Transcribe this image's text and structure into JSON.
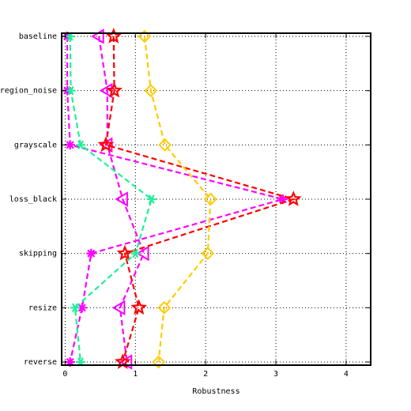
{
  "chart_data": {
    "type": "line",
    "xlabel": "Robustness",
    "ylabel": "",
    "xlim": [
      -0.05,
      4.35
    ],
    "xticks": [
      "0",
      "1",
      "2",
      "3",
      "4"
    ],
    "categories": [
      "baseline",
      "region_noise",
      "grayscale",
      "loss_black",
      "skipping",
      "resize",
      "reverse"
    ],
    "grid": true,
    "series": [
      {
        "marker": "star-x",
        "color": "#ff00ff",
        "values": [
          0.03,
          0.03,
          0.07,
          3.1,
          0.37,
          0.24,
          0.07
        ]
      },
      {
        "marker": "triangle-left",
        "color": "#ff00ff",
        "values": [
          0.48,
          0.6,
          0.6,
          0.82,
          1.12,
          0.78,
          0.88
        ]
      },
      {
        "marker": "star",
        "color": "#ff0000",
        "values": [
          0.69,
          0.7,
          0.58,
          3.25,
          0.85,
          1.05,
          0.82
        ]
      },
      {
        "marker": "asterisk",
        "color": "#22ee99",
        "values": [
          0.07,
          0.08,
          0.22,
          1.23,
          1.0,
          0.14,
          0.22
        ]
      },
      {
        "marker": "diamond",
        "color": "#ffcc00",
        "values": [
          1.13,
          1.22,
          1.42,
          2.07,
          2.03,
          1.41,
          1.33
        ]
      }
    ]
  }
}
